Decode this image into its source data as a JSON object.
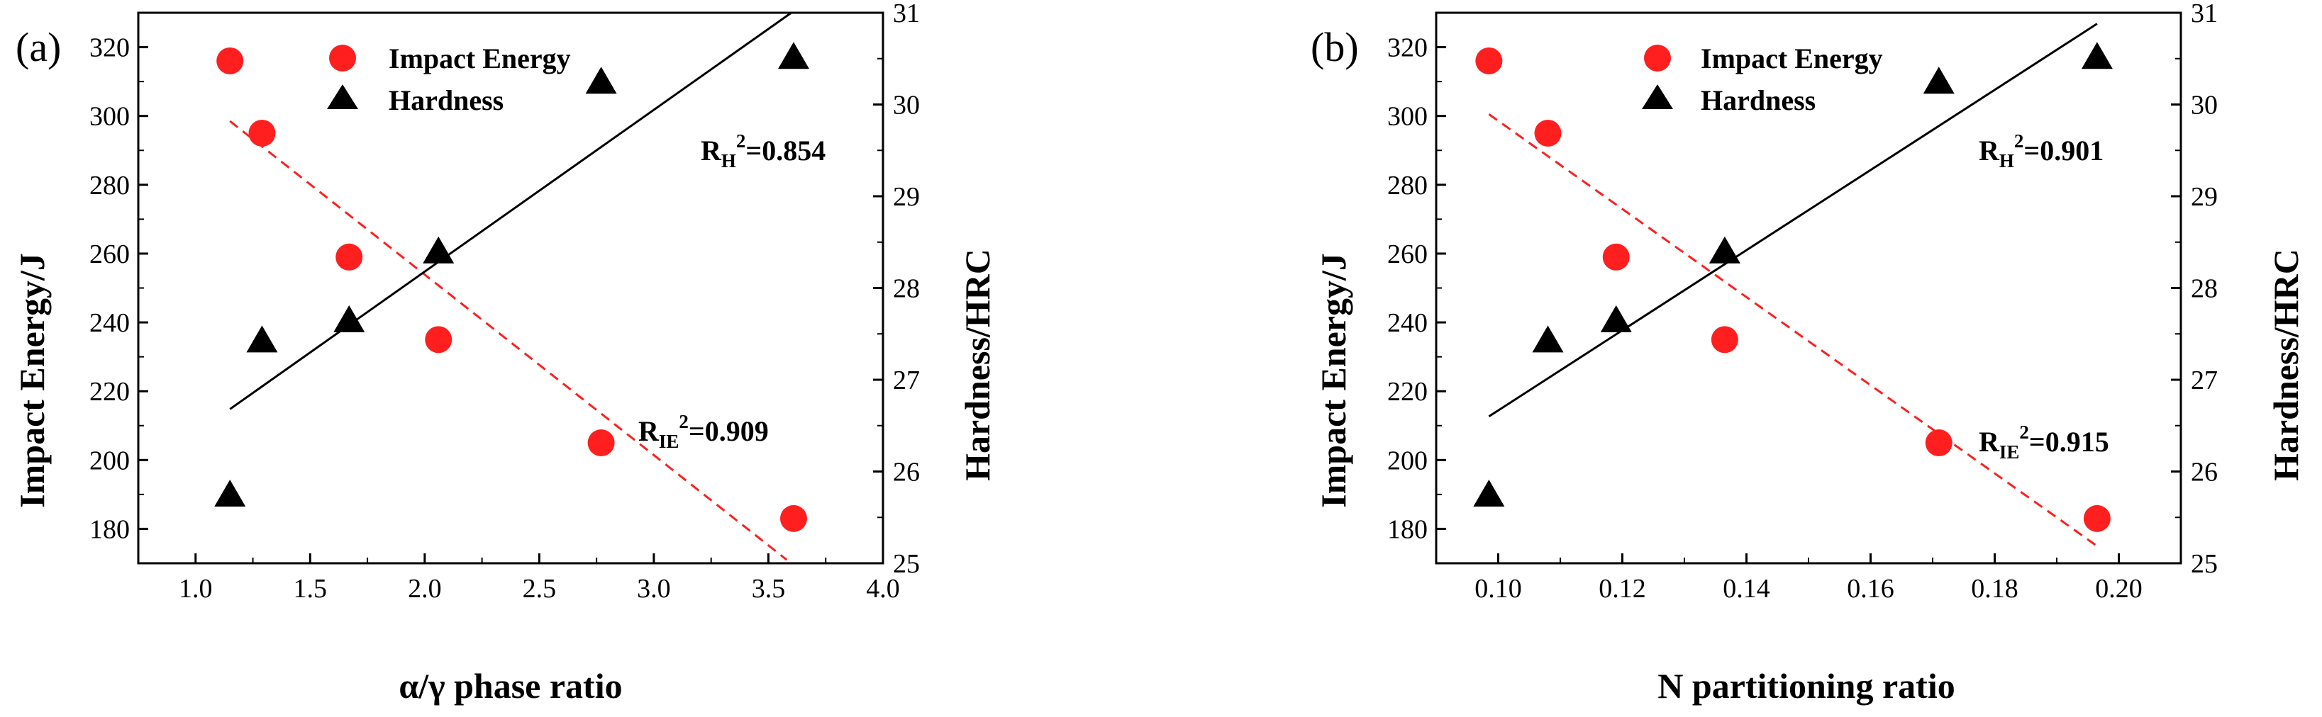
{
  "chart_data": [
    {
      "type": "scatter",
      "panel_label": "(a)",
      "xlabel": "α/γ phase ratio",
      "ylabel_left": "Impact Energy/J",
      "ylabel_right": "Hardness/HRC",
      "xlim": [
        0.75,
        4.0
      ],
      "ylim_left": [
        170,
        330
      ],
      "ylim_right": [
        25,
        31
      ],
      "x_ticks": [
        1.0,
        1.5,
        2.0,
        2.5,
        3.0,
        3.5,
        4.0
      ],
      "y_left_ticks": [
        180,
        200,
        220,
        240,
        260,
        280,
        300,
        320
      ],
      "y_right_ticks": [
        25,
        26,
        27,
        28,
        29,
        30,
        31
      ],
      "legend": {
        "position": "top-center",
        "entries": [
          "Impact Energy",
          "Hardness"
        ]
      },
      "series": [
        {
          "name": "Impact Energy",
          "axis": "left",
          "color": "#ff1f1f",
          "marker": "circle",
          "x": [
            1.15,
            1.29,
            1.67,
            2.06,
            2.77,
            3.61
          ],
          "y": [
            316,
            295,
            259,
            235,
            205,
            183
          ],
          "fit": {
            "x": [
              1.15,
              3.58
            ],
            "y": [
              298.5,
              171
            ],
            "r2_prefix": "R",
            "r2_sub": "IE",
            "r2_sup": "2",
            "r2_value": "=0.909",
            "line_color": "#ff1f1f",
            "dash": true
          }
        },
        {
          "name": "Hardness",
          "axis": "right",
          "color": "#000000",
          "marker": "triangle",
          "x": [
            1.15,
            1.29,
            1.67,
            2.06,
            2.77,
            3.61
          ],
          "y": [
            25.75,
            27.43,
            27.65,
            28.4,
            30.25,
            30.52
          ],
          "fit": {
            "x": [
              1.15,
              3.6
            ],
            "y": [
              26.68,
              31.0
            ],
            "r2_prefix": "R",
            "r2_sub": "H",
            "r2_sup": "2",
            "r2_value": "=0.854",
            "line_color": "#000000",
            "dash": false
          }
        }
      ]
    },
    {
      "type": "scatter",
      "panel_label": "(b)",
      "xlabel": "N partitioning ratio",
      "ylabel_left": "Impact Energy/J",
      "ylabel_right": "Hardness/HRC",
      "xlim": [
        0.09,
        0.21
      ],
      "ylim_left": [
        170,
        330
      ],
      "ylim_right": [
        25,
        31
      ],
      "x_ticks": [
        0.1,
        0.12,
        0.14,
        0.16,
        0.18,
        0.2
      ],
      "y_left_ticks": [
        180,
        200,
        220,
        240,
        260,
        280,
        300,
        320
      ],
      "y_right_ticks": [
        25,
        26,
        27,
        28,
        29,
        30,
        31
      ],
      "legend": {
        "position": "top-center",
        "entries": [
          "Impact Energy",
          "Hardness"
        ]
      },
      "series": [
        {
          "name": "Impact Energy",
          "axis": "left",
          "color": "#ff1f1f",
          "marker": "circle",
          "x": [
            0.0985,
            0.108,
            0.119,
            0.1365,
            0.171,
            0.1965
          ],
          "y": [
            316,
            295,
            259,
            235,
            205,
            183
          ],
          "fit": {
            "x": [
              0.0985,
              0.1965
            ],
            "y": [
              300.5,
              175
            ],
            "r2_prefix": "R",
            "r2_sub": "IE",
            "r2_sup": "2",
            "r2_value": "=0.915",
            "line_color": "#ff1f1f",
            "dash": true
          }
        },
        {
          "name": "Hardness",
          "axis": "right",
          "color": "#000000",
          "marker": "triangle",
          "x": [
            0.0985,
            0.108,
            0.119,
            0.1365,
            0.171,
            0.1965
          ],
          "y": [
            25.75,
            27.43,
            27.65,
            28.4,
            30.25,
            30.52
          ],
          "fit": {
            "x": [
              0.0985,
              0.1965
            ],
            "y": [
              26.6,
              30.88
            ],
            "r2_prefix": "R",
            "r2_sub": "H",
            "r2_sup": "2",
            "r2_value": "=0.901",
            "line_color": "#000000",
            "dash": false
          }
        }
      ]
    }
  ]
}
